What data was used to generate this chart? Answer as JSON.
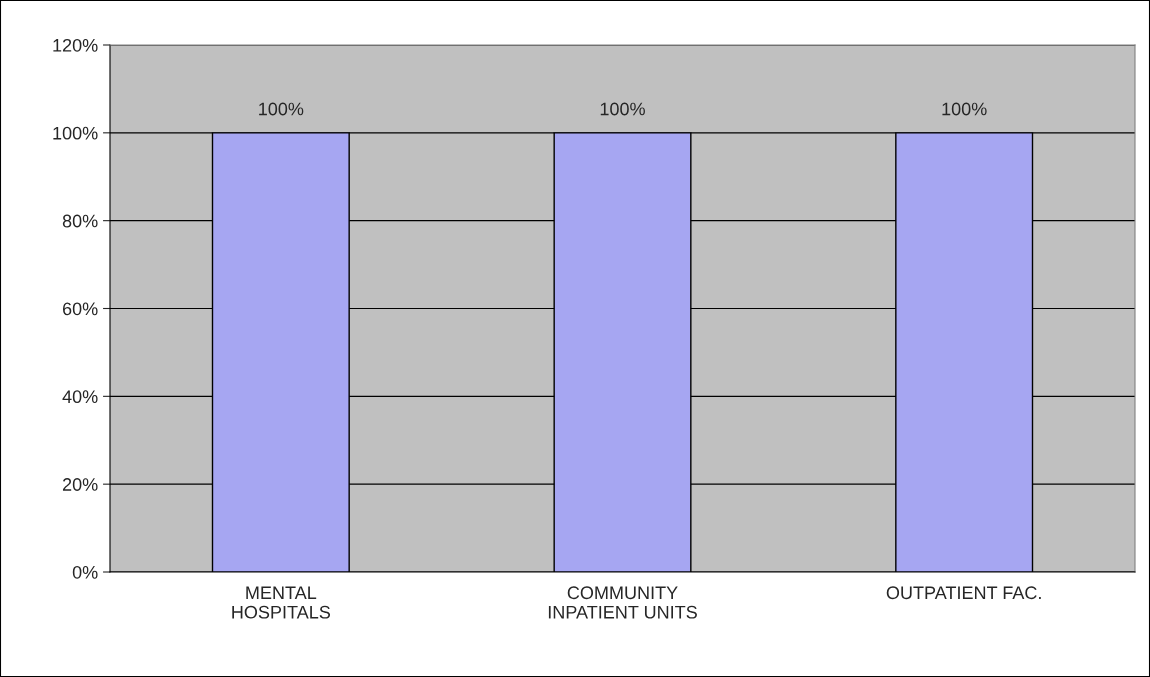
{
  "chart_data": {
    "type": "bar",
    "categories": [
      "MENTAL\nHOSPITALS",
      "COMMUNITY\nINPATIENT UNITS",
      "OUTPATIENT FAC."
    ],
    "values": [
      100,
      100,
      100
    ],
    "value_labels": [
      "100%",
      "100%",
      "100%"
    ],
    "color": "#9999ff",
    "ylim": [
      0,
      120
    ],
    "yticks": [
      {
        "value": 0,
        "label": "0%"
      },
      {
        "value": 20,
        "label": "20%"
      },
      {
        "value": 40,
        "label": "40%"
      },
      {
        "value": 60,
        "label": "60%"
      },
      {
        "value": 80,
        "label": "80%"
      },
      {
        "value": 100,
        "label": "100%"
      },
      {
        "value": 120,
        "label": "120%"
      }
    ],
    "grid": "y"
  }
}
